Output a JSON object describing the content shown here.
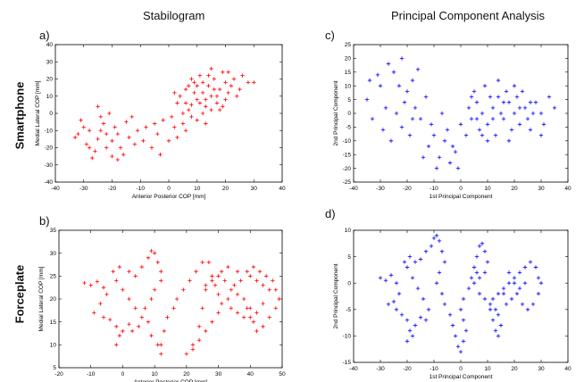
{
  "figure": {
    "col_titles": [
      "Stabilogram",
      "Principal Component Analysis"
    ],
    "row_labels": [
      "Smartphone",
      "Forceplate"
    ],
    "panel_labels": [
      "a)",
      "b)",
      "c)",
      "d)"
    ]
  },
  "chart_data": [
    {
      "id": "a",
      "type": "scatter",
      "marker": "+",
      "color": "#ff0000",
      "xlabel": "Anterior Posterior COP [mm]",
      "ylabel": "Medial Lateral COP [mm]",
      "xlim": [
        -40,
        40
      ],
      "ylim": [
        -40,
        40
      ],
      "xticks": [
        -40,
        -30,
        -20,
        -10,
        0,
        10,
        20,
        30,
        40
      ],
      "yticks": [
        -40,
        -30,
        -20,
        -10,
        0,
        10,
        20,
        30,
        40
      ],
      "grid": false,
      "points": [
        [
          -25,
          -15
        ],
        [
          -28,
          -10
        ],
        [
          -22,
          -20
        ],
        [
          -30,
          -8
        ],
        [
          -18,
          -12
        ],
        [
          -20,
          -25
        ],
        [
          -15,
          -5
        ],
        [
          -32,
          -12
        ],
        [
          -24,
          -2
        ],
        [
          -12,
          -18
        ],
        [
          -26,
          -22
        ],
        [
          -19,
          -8
        ],
        [
          -14,
          -14
        ],
        [
          -29,
          -18
        ],
        [
          -21,
          0
        ],
        [
          -17,
          -20
        ],
        [
          -23,
          -6
        ],
        [
          -27,
          -26
        ],
        [
          -11,
          -10
        ],
        [
          -31,
          -4
        ],
        [
          -16,
          -24
        ],
        [
          -9,
          -16
        ],
        [
          -33,
          -14
        ],
        [
          -20,
          -16
        ],
        [
          -25,
          4
        ],
        [
          -13,
          -2
        ],
        [
          -22,
          -12
        ],
        [
          -18,
          -27
        ],
        [
          -28,
          -20
        ],
        [
          -24,
          -10
        ],
        [
          -8,
          -8
        ],
        [
          -6,
          -20
        ],
        [
          -4,
          -12
        ],
        [
          -2,
          -4
        ],
        [
          0,
          -16
        ],
        [
          2,
          -8
        ],
        [
          -3,
          -24
        ],
        [
          1,
          -2
        ],
        [
          3,
          -14
        ],
        [
          -5,
          -6
        ],
        [
          5,
          0
        ],
        [
          8,
          5
        ],
        [
          10,
          8
        ],
        [
          12,
          12
        ],
        [
          15,
          10
        ],
        [
          18,
          14
        ],
        [
          6,
          14
        ],
        [
          9,
          18
        ],
        [
          13,
          4
        ],
        [
          16,
          20
        ],
        [
          20,
          8
        ],
        [
          22,
          16
        ],
        [
          7,
          2
        ],
        [
          11,
          22
        ],
        [
          14,
          16
        ],
        [
          17,
          6
        ],
        [
          19,
          24
        ],
        [
          21,
          12
        ],
        [
          4,
          10
        ],
        [
          8,
          20
        ],
        [
          12,
          0
        ],
        [
          15,
          26
        ],
        [
          23,
          20
        ],
        [
          25,
          14
        ],
        [
          10,
          -4
        ],
        [
          6,
          -10
        ],
        [
          3,
          6
        ],
        [
          18,
          2
        ],
        [
          26,
          22
        ],
        [
          28,
          18
        ],
        [
          13,
          8
        ],
        [
          9,
          12
        ],
        [
          16,
          14
        ],
        [
          20,
          18
        ],
        [
          11,
          6
        ],
        [
          14,
          22
        ],
        [
          7,
          16
        ],
        [
          17,
          10
        ],
        [
          5,
          -6
        ],
        [
          12,
          18
        ],
        [
          24,
          10
        ],
        [
          19,
          4
        ],
        [
          15,
          2
        ],
        [
          8,
          -2
        ],
        [
          21,
          24
        ],
        [
          10,
          16
        ],
        [
          13,
          -6
        ],
        [
          30,
          18
        ],
        [
          2,
          12
        ],
        [
          6,
          6
        ]
      ]
    },
    {
      "id": "b",
      "type": "scatter",
      "marker": "+",
      "color": "#ff0000",
      "xlabel": "Anterior Posterior COP [mm]",
      "ylabel": "Medial Lateral COP [mm]",
      "xlim": [
        -20,
        50
      ],
      "ylim": [
        5,
        35
      ],
      "xticks": [
        -20,
        -10,
        0,
        10,
        20,
        30,
        40,
        50
      ],
      "yticks": [
        5,
        10,
        15,
        20,
        25,
        30,
        35
      ],
      "grid": false,
      "points": [
        [
          -12,
          23.5
        ],
        [
          -10,
          23
        ],
        [
          -8,
          23.8
        ],
        [
          -6,
          22.5
        ],
        [
          -5,
          21
        ],
        [
          -7,
          19
        ],
        [
          -9,
          17
        ],
        [
          -6,
          16
        ],
        [
          -4,
          15.5
        ],
        [
          -2,
          14
        ],
        [
          -1,
          12
        ],
        [
          -2,
          10
        ],
        [
          0,
          13
        ],
        [
          2,
          14.5
        ],
        [
          3,
          13
        ],
        [
          5,
          14
        ],
        [
          6,
          16
        ],
        [
          4,
          18
        ],
        [
          2,
          20
        ],
        [
          0,
          22
        ],
        [
          -2,
          24
        ],
        [
          -3,
          26
        ],
        [
          -1,
          27
        ],
        [
          2,
          26
        ],
        [
          4,
          25
        ],
        [
          6,
          27
        ],
        [
          8,
          29
        ],
        [
          9,
          30.5
        ],
        [
          10,
          30
        ],
        [
          11,
          28
        ],
        [
          12,
          26
        ],
        [
          12,
          24
        ],
        [
          10,
          22
        ],
        [
          9,
          20
        ],
        [
          7,
          18
        ],
        [
          8,
          15
        ],
        [
          9,
          12
        ],
        [
          11,
          10
        ],
        [
          12,
          8
        ],
        [
          12,
          10
        ],
        [
          13,
          13
        ],
        [
          14,
          16
        ],
        [
          16,
          18
        ],
        [
          17,
          20
        ],
        [
          19,
          22
        ],
        [
          21,
          24
        ],
        [
          23,
          26
        ],
        [
          25,
          28
        ],
        [
          27,
          28
        ],
        [
          28,
          25
        ],
        [
          29,
          23
        ],
        [
          30,
          21
        ],
        [
          31,
          19
        ],
        [
          30,
          17
        ],
        [
          28,
          15
        ],
        [
          26,
          13
        ],
        [
          24,
          11
        ],
        [
          22,
          9
        ],
        [
          20,
          8
        ],
        [
          22,
          10
        ],
        [
          24,
          14
        ],
        [
          25,
          18
        ],
        [
          26,
          22
        ],
        [
          26,
          23
        ],
        [
          28,
          24
        ],
        [
          30,
          25
        ],
        [
          32,
          24
        ],
        [
          34,
          22
        ],
        [
          36,
          21
        ],
        [
          38,
          20
        ],
        [
          39,
          18
        ],
        [
          40,
          16
        ],
        [
          42,
          17
        ],
        [
          44,
          19
        ],
        [
          46,
          22
        ],
        [
          47,
          24
        ],
        [
          48,
          22
        ],
        [
          49,
          20
        ],
        [
          48,
          18
        ],
        [
          46,
          16
        ],
        [
          44,
          14
        ],
        [
          42,
          13
        ],
        [
          41,
          15
        ],
        [
          40,
          18
        ],
        [
          38,
          16
        ],
        [
          36,
          17
        ],
        [
          34,
          18
        ],
        [
          33,
          20
        ],
        [
          35,
          23
        ],
        [
          37,
          24
        ],
        [
          40,
          25
        ],
        [
          42,
          24
        ],
        [
          44,
          23
        ],
        [
          45,
          25
        ],
        [
          43,
          26
        ],
        [
          41,
          27
        ],
        [
          39,
          26
        ],
        [
          36,
          26
        ],
        [
          33,
          27
        ],
        [
          31,
          26
        ]
      ]
    },
    {
      "id": "c",
      "type": "scatter",
      "marker": "+",
      "color": "#0000ff",
      "xlabel": "1st Principal Component",
      "ylabel": "2nd Principal Component",
      "xlim": [
        -40,
        40
      ],
      "ylim": [
        -25,
        25
      ],
      "xticks": [
        -40,
        -30,
        -20,
        -10,
        0,
        10,
        20,
        30,
        40
      ],
      "yticks": [
        -25,
        -20,
        -15,
        -10,
        -5,
        0,
        5,
        10,
        15,
        20,
        25
      ],
      "grid": false,
      "points": [
        [
          -35,
          5
        ],
        [
          -30,
          10
        ],
        [
          -28,
          2
        ],
        [
          -25,
          15
        ],
        [
          -22,
          -5
        ],
        [
          -20,
          8
        ],
        [
          -18,
          12
        ],
        [
          -33,
          -2
        ],
        [
          -27,
          18
        ],
        [
          -24,
          0
        ],
        [
          -21,
          4
        ],
        [
          -19,
          -8
        ],
        [
          -31,
          14
        ],
        [
          -26,
          -10
        ],
        [
          -23,
          10
        ],
        [
          -17,
          2
        ],
        [
          -29,
          -6
        ],
        [
          -34,
          12
        ],
        [
          -16,
          16
        ],
        [
          -22,
          20
        ],
        [
          -15,
          -2
        ],
        [
          -12,
          -12
        ],
        [
          -10,
          -8
        ],
        [
          -8,
          -16
        ],
        [
          -6,
          -10
        ],
        [
          -4,
          -18
        ],
        [
          -2,
          -14
        ],
        [
          -11,
          -4
        ],
        [
          -9,
          -20
        ],
        [
          -5,
          -6
        ],
        [
          -3,
          -12
        ],
        [
          0,
          -4
        ],
        [
          -7,
          0
        ],
        [
          -13,
          6
        ],
        [
          -14,
          -16
        ],
        [
          2,
          -8
        ],
        [
          4,
          -2
        ],
        [
          6,
          4
        ],
        [
          8,
          0
        ],
        [
          10,
          -4
        ],
        [
          12,
          2
        ],
        [
          14,
          6
        ],
        [
          16,
          -2
        ],
        [
          18,
          4
        ],
        [
          20,
          0
        ],
        [
          22,
          -4
        ],
        [
          24,
          2
        ],
        [
          26,
          -6
        ],
        [
          28,
          4
        ],
        [
          30,
          0
        ],
        [
          5,
          8
        ],
        [
          9,
          10
        ],
        [
          13,
          -8
        ],
        [
          17,
          8
        ],
        [
          21,
          6
        ],
        [
          25,
          -2
        ],
        [
          7,
          -6
        ],
        [
          11,
          6
        ],
        [
          15,
          0
        ],
        [
          19,
          -6
        ],
        [
          23,
          8
        ],
        [
          27,
          0
        ],
        [
          31,
          -4
        ],
        [
          33,
          6
        ],
        [
          10,
          -10
        ],
        [
          14,
          12
        ],
        [
          6,
          -2
        ],
        [
          18,
          -10
        ],
        [
          3,
          2
        ],
        [
          12,
          -2
        ],
        [
          20,
          10
        ],
        [
          16,
          4
        ],
        [
          8,
          -8
        ],
        [
          22,
          2
        ],
        [
          4,
          6
        ],
        [
          26,
          4
        ],
        [
          35,
          2
        ],
        [
          30,
          -8
        ],
        [
          -1,
          -20
        ],
        [
          -18,
          -2
        ]
      ]
    },
    {
      "id": "d",
      "type": "scatter",
      "marker": "+",
      "color": "#0000ff",
      "xlabel": "1st Principal Component",
      "ylabel": "2nd Principal Component",
      "xlim": [
        -40,
        40
      ],
      "ylim": [
        -15,
        10
      ],
      "xticks": [
        -40,
        -30,
        -20,
        -10,
        0,
        10,
        20,
        30,
        40
      ],
      "yticks": [
        -15,
        -10,
        -5,
        0,
        5,
        10
      ],
      "grid": false,
      "points": [
        [
          -30,
          1
        ],
        [
          -28,
          0.5
        ],
        [
          -26,
          1.5
        ],
        [
          -24,
          0
        ],
        [
          -23,
          -2
        ],
        [
          -25,
          -3.5
        ],
        [
          -27,
          -4
        ],
        [
          -24,
          -5
        ],
        [
          -22,
          -6
        ],
        [
          -20,
          -7
        ],
        [
          -19,
          -9
        ],
        [
          -20,
          -11
        ],
        [
          -18,
          -10
        ],
        [
          -17,
          -8
        ],
        [
          -15,
          -6.5
        ],
        [
          -13,
          -7
        ],
        [
          -12,
          -5
        ],
        [
          -14,
          -3
        ],
        [
          -16,
          -1
        ],
        [
          -18,
          1
        ],
        [
          -20,
          3
        ],
        [
          -21,
          4
        ],
        [
          -19,
          5
        ],
        [
          -17,
          4
        ],
        [
          -15,
          4.5
        ],
        [
          -13,
          6
        ],
        [
          -11,
          7
        ],
        [
          -10,
          8.5
        ],
        [
          -9,
          9
        ],
        [
          -8,
          8
        ],
        [
          -7,
          6
        ],
        [
          -6,
          4
        ],
        [
          -8,
          2
        ],
        [
          -9,
          0
        ],
        [
          -7,
          -2
        ],
        [
          -6,
          -4
        ],
        [
          -4,
          -6
        ],
        [
          -3,
          -8
        ],
        [
          -2,
          -10
        ],
        [
          -1,
          -12
        ],
        [
          0,
          -13
        ],
        [
          1,
          -11
        ],
        [
          2,
          -9
        ],
        [
          1,
          -7
        ],
        [
          0,
          -5
        ],
        [
          1,
          -3
        ],
        [
          3,
          -1
        ],
        [
          4,
          1
        ],
        [
          5,
          3
        ],
        [
          6,
          5
        ],
        [
          7,
          7
        ],
        [
          8,
          7.5
        ],
        [
          9,
          6
        ],
        [
          10,
          4
        ],
        [
          9,
          2
        ],
        [
          7,
          1
        ],
        [
          6,
          2
        ],
        [
          5,
          0
        ],
        [
          7,
          -2
        ],
        [
          9,
          -3
        ],
        [
          11,
          -4
        ],
        [
          13,
          -5
        ],
        [
          14,
          -6
        ],
        [
          15,
          -8
        ],
        [
          14,
          -10
        ],
        [
          13,
          -9
        ],
        [
          12,
          -7
        ],
        [
          11,
          -5
        ],
        [
          12,
          -3
        ],
        [
          14,
          -2
        ],
        [
          16,
          -1
        ],
        [
          18,
          0
        ],
        [
          20,
          1
        ],
        [
          22,
          2
        ],
        [
          24,
          3
        ],
        [
          26,
          4
        ],
        [
          28,
          3
        ],
        [
          29,
          1
        ],
        [
          30,
          0
        ],
        [
          29,
          -2
        ],
        [
          27,
          -4
        ],
        [
          25,
          -5
        ],
        [
          23,
          -4
        ],
        [
          21,
          -2
        ],
        [
          19,
          -3
        ],
        [
          17,
          -4
        ],
        [
          16,
          -2
        ],
        [
          18,
          2
        ],
        [
          20,
          0
        ],
        [
          22,
          -1
        ],
        [
          24,
          0
        ]
      ]
    }
  ]
}
